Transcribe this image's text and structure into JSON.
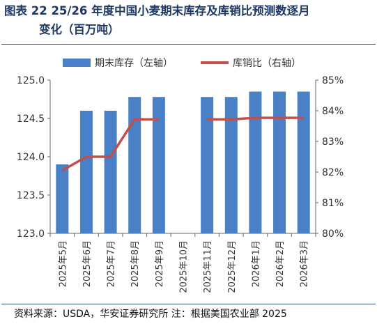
{
  "header": {
    "title_line1": "图表 22 25/26 年度中国小麦期末库存及库销比预测数逐月",
    "title_line2": "变化（百万吨）"
  },
  "footer": {
    "source": "资料来源：USDA，华安证券研究所  注：根据美国农业部 2025"
  },
  "colors": {
    "bar": "#4a80c6",
    "line": "#c0504d",
    "title": "#1f3864"
  },
  "chart_data": {
    "type": "bar",
    "categories": [
      "2025年5月",
      "2025年6月",
      "2025年7月",
      "2025年8月",
      "2025年9月",
      "2025年10月",
      "2025年11月",
      "2025年12月",
      "2026年1月",
      "2026年2月",
      "2026年3月"
    ],
    "series": [
      {
        "name": "期末库存（左轴）",
        "type": "bar",
        "axis": "left",
        "values": [
          123.9,
          124.6,
          124.6,
          124.78,
          124.78,
          null,
          124.78,
          124.78,
          124.85,
          124.85,
          124.85
        ]
      },
      {
        "name": "库销比（右轴）",
        "type": "line",
        "axis": "right",
        "values": [
          82.05,
          82.5,
          82.5,
          83.72,
          83.72,
          null,
          83.72,
          83.72,
          83.77,
          83.77,
          83.77
        ]
      }
    ],
    "y_left": {
      "min": 123.0,
      "max": 125.0,
      "ticks": [
        "123.0",
        "123.5",
        "124.0",
        "124.5",
        "125.0"
      ]
    },
    "y_right": {
      "min": 80,
      "max": 85,
      "ticks": [
        "80%",
        "81%",
        "82%",
        "83%",
        "84%",
        "85%"
      ]
    },
    "legend_position": "top",
    "grid": false
  }
}
